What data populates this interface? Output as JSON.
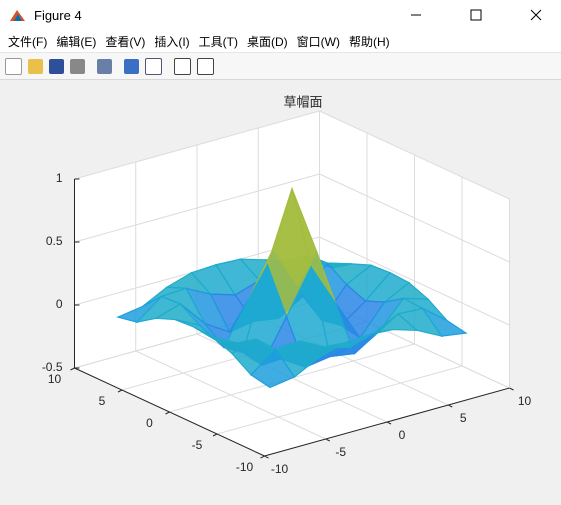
{
  "window": {
    "title": "Figure 4",
    "menu": [
      "文件(F)",
      "编辑(E)",
      "查看(V)",
      "插入(I)",
      "工具(T)",
      "桌面(D)",
      "窗口(W)",
      "帮助(H)"
    ]
  },
  "chart_data": {
    "type": "mesh",
    "title": "草帽面",
    "x": [
      -8,
      -6,
      -4,
      -2,
      0,
      2,
      4,
      6,
      8
    ],
    "y": [
      -8,
      -6,
      -4,
      -2,
      0,
      2,
      4,
      6,
      8
    ],
    "z": [
      [
        -0.08,
        -0.05,
        0.05,
        0.11,
        0.12,
        0.11,
        0.05,
        -0.05,
        -0.08
      ],
      [
        -0.05,
        0.1,
        0.11,
        0.01,
        -0.05,
        0.01,
        0.11,
        0.1,
        -0.05
      ],
      [
        0.05,
        0.11,
        -0.1,
        -0.22,
        -0.19,
        -0.22,
        -0.1,
        0.11,
        0.05
      ],
      [
        0.11,
        0.01,
        -0.22,
        0.11,
        0.45,
        0.11,
        -0.22,
        0.01,
        0.11
      ],
      [
        0.12,
        -0.05,
        -0.19,
        0.45,
        1,
        0.45,
        -0.19,
        -0.05,
        0.12
      ],
      [
        0.11,
        0.01,
        -0.22,
        0.11,
        0.45,
        0.11,
        -0.22,
        0.01,
        0.11
      ],
      [
        0.05,
        0.11,
        -0.1,
        -0.22,
        -0.19,
        -0.22,
        -0.1,
        0.11,
        0.05
      ],
      [
        -0.05,
        0.1,
        0.11,
        0.01,
        -0.05,
        0.01,
        0.11,
        0.1,
        -0.05
      ],
      [
        -0.08,
        -0.05,
        0.05,
        0.11,
        0.12,
        0.11,
        0.05,
        -0.05,
        -0.08
      ]
    ],
    "xlim": [
      -10,
      10
    ],
    "ylim": [
      -10,
      10
    ],
    "zlim": [
      -0.5,
      1
    ],
    "xticks": [
      -10,
      -5,
      0,
      5,
      10
    ],
    "yticks": [
      -10,
      -5,
      0,
      5,
      10
    ],
    "zticks": [
      -0.5,
      0,
      0.5,
      1
    ],
    "grid": true,
    "colormap": [
      "#3e26a8",
      "#3d5ff5",
      "#1aa5da",
      "#2cc09b",
      "#a3bd3f",
      "#f8d52e",
      "#f9fb15"
    ]
  }
}
